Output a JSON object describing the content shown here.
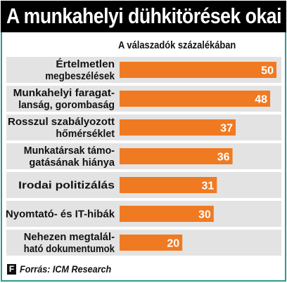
{
  "header": {
    "title": "A munkahelyi dühkitörések okai"
  },
  "chart_data": {
    "type": "bar",
    "orientation": "horizontal",
    "title": "A munkahelyi dühkitörések okai",
    "unit_label": "A válaszadók százalékában",
    "categories": [
      [
        "Értelmetlen",
        "megbeszélések"
      ],
      [
        "Munkahelyi faragat-",
        "lanság, gorombaság"
      ],
      [
        "Rosszul szabályozott",
        "hőmérséklet"
      ],
      [
        "Munkatársak támo-",
        "gatásának hiánya"
      ],
      [
        "Irodai politizálás"
      ],
      [
        "Nyomtató- és IT-hibák"
      ],
      [
        "Nehezen megtalál-",
        "ható dokumentumok"
      ]
    ],
    "values": [
      50,
      48,
      37,
      36,
      31,
      30,
      20
    ],
    "data_labels": [
      "50",
      "48",
      "37",
      "36",
      "31",
      "30",
      "20"
    ],
    "xlim": [
      0,
      50
    ],
    "bar_color": "#f07a22",
    "stripe_color": "#e3e3e3",
    "accent_color": "#2b9a8f",
    "grid": false,
    "legend": "none"
  },
  "footer": {
    "logo": "F",
    "source": "Forrás: ICM Research"
  }
}
